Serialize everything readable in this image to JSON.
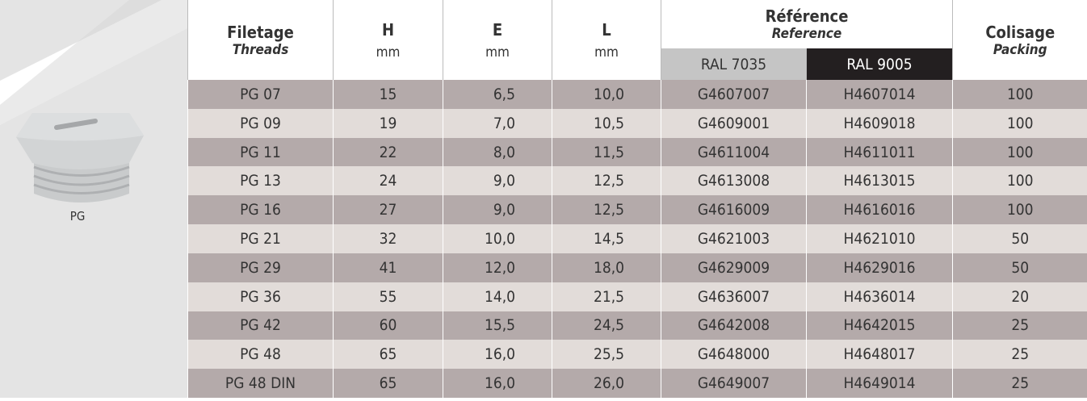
{
  "side": {
    "label": "PG"
  },
  "header": {
    "threads": {
      "title": "Filetage",
      "subtitle": "Threads"
    },
    "h": {
      "title": "H",
      "unit": "mm"
    },
    "e": {
      "title": "E",
      "unit": "mm"
    },
    "l": {
      "title": "L",
      "unit": "mm"
    },
    "reference": {
      "title": "Référence",
      "subtitle": "Reference",
      "ral_a": "RAL 7035",
      "ral_b": "RAL 9005"
    },
    "packing": {
      "title": "Colisage",
      "subtitle": "Packing"
    }
  },
  "table": {
    "rows": [
      [
        "PG 07",
        "15",
        "6,5",
        "10,0",
        "G4607007",
        "H4607014",
        "100"
      ],
      [
        "PG 09",
        "19",
        "7,0",
        "10,5",
        "G4609001",
        "H4609018",
        "100"
      ],
      [
        "PG 11",
        "22",
        "8,0",
        "11,5",
        "G4611004",
        "H4611011",
        "100"
      ],
      [
        "PG 13",
        "24",
        "9,0",
        "12,5",
        "G4613008",
        "H4613015",
        "100"
      ],
      [
        "PG 16",
        "27",
        "9,0",
        "12,5",
        "G4616009",
        "H4616016",
        "100"
      ],
      [
        "PG 21",
        "32",
        "10,0",
        "14,5",
        "G4621003",
        "H4621010",
        "50"
      ],
      [
        "PG 29",
        "41",
        "12,0",
        "18,0",
        "G4629009",
        "H4629016",
        "50"
      ],
      [
        "PG 36",
        "55",
        "14,0",
        "21,5",
        "G4636007",
        "H4636014",
        "20"
      ],
      [
        "PG 42",
        "60",
        "15,5",
        "24,5",
        "G4642008",
        "H4642015",
        "25"
      ],
      [
        "PG 48",
        "65",
        "16,0",
        "25,5",
        "G4648000",
        "H4648017",
        "25"
      ],
      [
        "PG 48 DIN",
        "65",
        "16,0",
        "26,0",
        "G4649007",
        "H4649014",
        "25"
      ]
    ]
  }
}
